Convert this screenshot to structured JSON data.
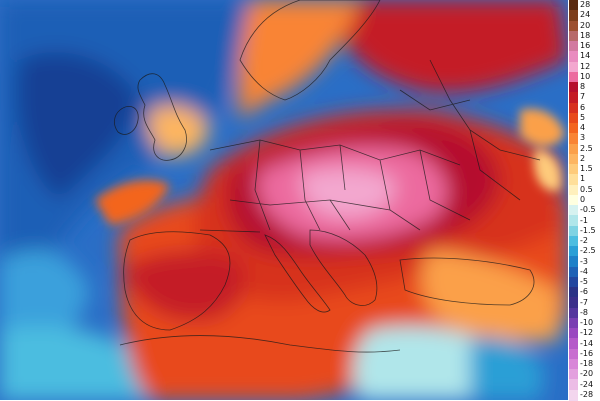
{
  "legend": {
    "items": [
      {
        "label": "28",
        "color": "#5a2a10"
      },
      {
        "label": "24",
        "color": "#7c3e1c"
      },
      {
        "label": "20",
        "color": "#9c5030"
      },
      {
        "label": "18",
        "color": "#b76a6a"
      },
      {
        "label": "16",
        "color": "#d27aa0"
      },
      {
        "label": "14",
        "color": "#e98bbf"
      },
      {
        "label": "12",
        "color": "#f3a7cf"
      },
      {
        "label": "10",
        "color": "#ec6b9f"
      },
      {
        "label": "8",
        "color": "#b50f2e"
      },
      {
        "label": "7",
        "color": "#c41b25"
      },
      {
        "label": "6",
        "color": "#d7301f"
      },
      {
        "label": "5",
        "color": "#e84a1b"
      },
      {
        "label": "4",
        "color": "#f3651f"
      },
      {
        "label": "3",
        "color": "#f98434"
      },
      {
        "label": "2.5",
        "color": "#fba04a"
      },
      {
        "label": "2",
        "color": "#fdb561"
      },
      {
        "label": "1.5",
        "color": "#fecb7b"
      },
      {
        "label": "1",
        "color": "#ffdf9a"
      },
      {
        "label": "0.5",
        "color": "#fff0bd"
      },
      {
        "label": "0",
        "color": "#ffffe0"
      },
      {
        "label": "-0.5",
        "color": "#d6f2f0"
      },
      {
        "label": "-1",
        "color": "#b0e6ea"
      },
      {
        "label": "-1.5",
        "color": "#7fd3e3"
      },
      {
        "label": "-2",
        "color": "#4cbde0"
      },
      {
        "label": "-2.5",
        "color": "#2a9fd6"
      },
      {
        "label": "-3",
        "color": "#1e80c8"
      },
      {
        "label": "-4",
        "color": "#1f62b6"
      },
      {
        "label": "-5",
        "color": "#23479f"
      },
      {
        "label": "-6",
        "color": "#2b3386"
      },
      {
        "label": "-7",
        "color": "#3b2f8a"
      },
      {
        "label": "-8",
        "color": "#55369e"
      },
      {
        "label": "-10",
        "color": "#7a3fb2"
      },
      {
        "label": "-12",
        "color": "#9a49c0"
      },
      {
        "label": "-14",
        "color": "#b55ac9"
      },
      {
        "label": "-16",
        "color": "#c86fd0"
      },
      {
        "label": "-18",
        "color": "#d887d8"
      },
      {
        "label": "-20",
        "color": "#e3a1de"
      },
      {
        "label": "-24",
        "color": "#ecbde6"
      },
      {
        "label": "-28",
        "color": "#f3d6ee"
      }
    ]
  }
}
